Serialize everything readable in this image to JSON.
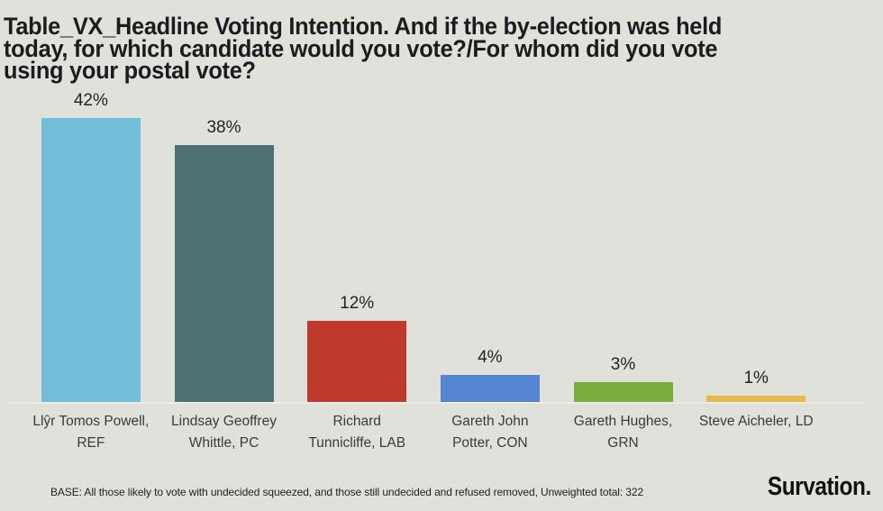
{
  "title": "Table_VX_Headline Voting Intention. And if the by-election was held today, for which candidate would you vote?/For whom did you vote using your postal vote?",
  "title_lines": [
    "Table_VX_Headline Voting Intention. And if the by-election was held",
    "today, for which candidate would you vote?/For whom did you vote",
    "using your postal vote?"
  ],
  "chart_data": {
    "type": "bar",
    "title": "Table_VX_Headline Voting Intention. And if the by-election was held today, for which candidate would you vote?/For whom did you vote using your postal vote?",
    "categories": [
      "Llŷr Tomos Powell, REF",
      "Lindsay Geoffrey Whittle, PC",
      "Richard Tunnicliffe, LAB",
      "Gareth John Potter, CON",
      "Gareth Hughes, GRN",
      "Steve Aicheler, LD"
    ],
    "category_lines": [
      [
        "Llŷr Tomos Powell,",
        "REF"
      ],
      [
        "Lindsay Geoffrey",
        "Whittle, PC"
      ],
      [
        "Richard",
        "Tunnicliffe, LAB"
      ],
      [
        "Gareth John",
        "Potter, CON"
      ],
      [
        "Gareth Hughes,",
        "GRN"
      ],
      [
        "Steve Aicheler, LD"
      ]
    ],
    "values": [
      42,
      38,
      12,
      4,
      3,
      1
    ],
    "value_labels": [
      "42%",
      "38%",
      "12%",
      "4%",
      "3%",
      "1%"
    ],
    "bar_colors": [
      "#71bed9",
      "#4e7173",
      "#bf392c",
      "#5585d3",
      "#7dac3e",
      "#e8ba4d"
    ],
    "xlabel": "",
    "ylabel": "",
    "ylim": [
      0,
      46
    ],
    "grid": false,
    "legend": "none",
    "background": "#e1e1dc"
  },
  "footer": {
    "base_note": "BASE: All those likely to vote with undecided squeezed, and those still undecided and refused removed, Unweighted total: 322",
    "brand": "Survation."
  }
}
